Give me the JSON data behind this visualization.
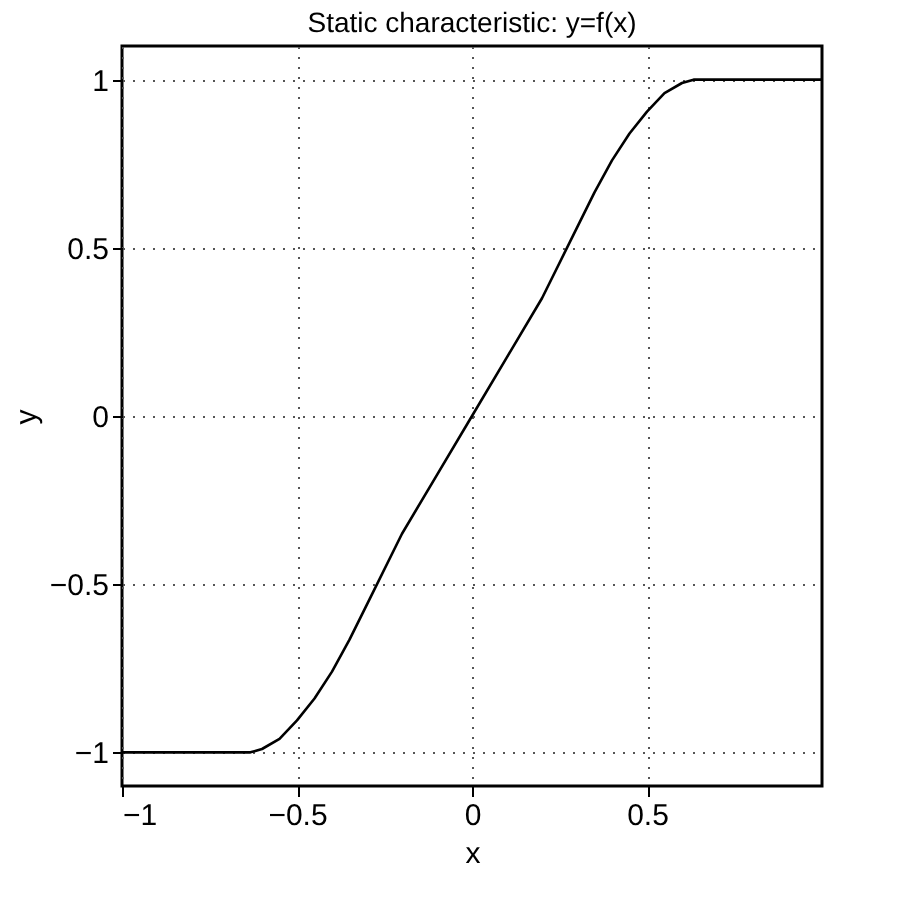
{
  "chart_data": {
    "type": "line",
    "title": "Static characteristic: y=f(x)",
    "xlabel": "x",
    "ylabel": "y",
    "x": [
      -1,
      -0.8,
      -0.633,
      -0.6,
      -0.55,
      -0.5,
      -0.45,
      -0.4,
      -0.35,
      -0.3,
      -0.2,
      -0.1,
      0,
      0.1,
      0.2,
      0.3,
      0.35,
      0.4,
      0.45,
      0.5,
      0.55,
      0.6,
      0.633,
      0.8,
      1
    ],
    "series": [
      {
        "color": "#000000",
        "values": [
          -1,
          -1,
          -1,
          -0.99,
          -0.96,
          -0.905,
          -0.84,
          -0.76,
          -0.665,
          -0.56,
          -0.35,
          -0.175,
          0,
          0.175,
          0.35,
          0.56,
          0.665,
          0.76,
          0.84,
          0.905,
          0.96,
          0.99,
          1,
          1,
          1
        ]
      }
    ],
    "xlim": [
      -1,
      1
    ],
    "ylim": [
      -1.1,
      1.1
    ],
    "xticks": [
      -1,
      -0.5,
      0,
      0.5
    ],
    "yticks": [
      -1,
      -0.5,
      0,
      0.5,
      1
    ],
    "grid": true,
    "line_style": "solid"
  }
}
